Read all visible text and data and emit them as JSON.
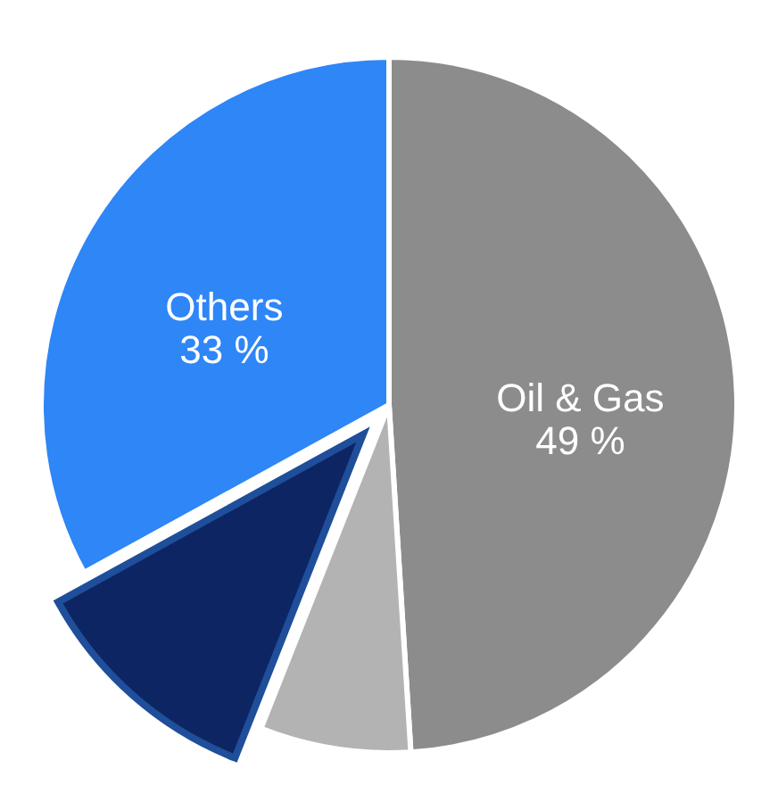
{
  "chart_data": {
    "type": "pie",
    "categories": [
      "Oil & Gas",
      null,
      null,
      "Others"
    ],
    "values": [
      49,
      7,
      11,
      33
    ],
    "colors": [
      "#8c8c8c",
      "#b3b3b3",
      "#0d2563",
      "#2e86f7"
    ],
    "value_labels": [
      "49 %",
      null,
      null,
      "33 %"
    ]
  }
}
